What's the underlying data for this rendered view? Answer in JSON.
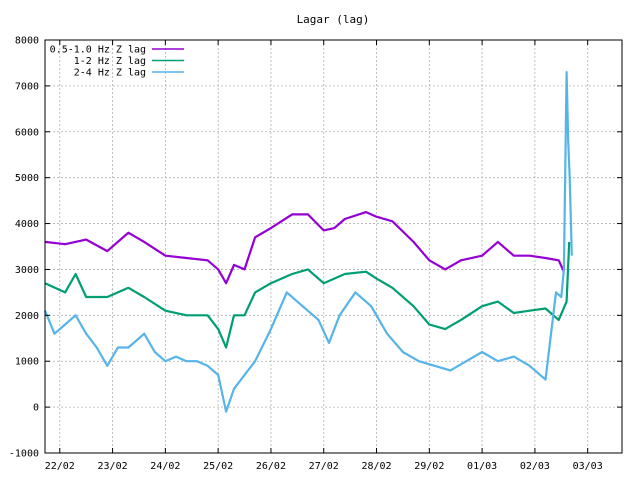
{
  "chart_data": {
    "type": "line",
    "title": "Lagar (lag)",
    "xlabel": "",
    "ylabel": "",
    "ylim": [
      -1000,
      8000
    ],
    "xlim": [
      -0.28,
      10.65
    ],
    "y_ticks": [
      -1000,
      0,
      1000,
      2000,
      3000,
      4000,
      5000,
      6000,
      7000,
      8000
    ],
    "x_ticks": [
      {
        "x": 0,
        "label": "22/02"
      },
      {
        "x": 1,
        "label": "23/02"
      },
      {
        "x": 2,
        "label": "24/02"
      },
      {
        "x": 3,
        "label": "25/02"
      },
      {
        "x": 4,
        "label": "26/02"
      },
      {
        "x": 5,
        "label": "27/02"
      },
      {
        "x": 6,
        "label": "28/02"
      },
      {
        "x": 7,
        "label": "29/02"
      },
      {
        "x": 8,
        "label": "01/03"
      },
      {
        "x": 9,
        "label": "02/03"
      },
      {
        "x": 10,
        "label": "03/03"
      }
    ],
    "grid": true,
    "legend_position": "top-left",
    "series": [
      {
        "name": "0.5-1.0 Hz Z lag",
        "color": "#9400d3",
        "x": [
          -0.28,
          0.1,
          0.5,
          0.9,
          1.3,
          1.6,
          2.0,
          2.4,
          2.8,
          3.0,
          3.15,
          3.3,
          3.5,
          3.7,
          4.0,
          4.4,
          4.7,
          5.0,
          5.2,
          5.4,
          5.8,
          6.0,
          6.3,
          6.7,
          7.0,
          7.3,
          7.6,
          8.0,
          8.3,
          8.6,
          8.9,
          9.2,
          9.45,
          9.55
        ],
        "y": [
          3600,
          3550,
          3650,
          3400,
          3800,
          3600,
          3300,
          3250,
          3200,
          3000,
          2700,
          3100,
          3000,
          3700,
          3900,
          4200,
          4200,
          3850,
          3900,
          4100,
          4250,
          4150,
          4050,
          3600,
          3200,
          3000,
          3200,
          3300,
          3600,
          3300,
          3300,
          3250,
          3200,
          2950
        ]
      },
      {
        "name": "1-2 Hz Z lag",
        "color": "#009e73",
        "x": [
          -0.28,
          0.1,
          0.3,
          0.5,
          0.9,
          1.3,
          1.6,
          2.0,
          2.4,
          2.8,
          3.0,
          3.15,
          3.3,
          3.5,
          3.7,
          4.0,
          4.4,
          4.7,
          5.0,
          5.2,
          5.4,
          5.8,
          6.0,
          6.3,
          6.7,
          7.0,
          7.3,
          7.6,
          8.0,
          8.3,
          8.6,
          8.9,
          9.2,
          9.45,
          9.6,
          9.65
        ],
        "y": [
          2700,
          2500,
          2900,
          2400,
          2400,
          2600,
          2400,
          2100,
          2000,
          2000,
          1700,
          1300,
          2000,
          2000,
          2500,
          2700,
          2900,
          3000,
          2700,
          2800,
          2900,
          2950,
          2800,
          2600,
          2200,
          1800,
          1700,
          1900,
          2200,
          2300,
          2050,
          2100,
          2150,
          1900,
          2300,
          3600
        ]
      },
      {
        "name": "2-4 Hz Z lag",
        "color": "#56b4e9",
        "x": [
          -0.28,
          -0.1,
          0.1,
          0.3,
          0.5,
          0.7,
          0.9,
          1.1,
          1.3,
          1.6,
          1.8,
          2.0,
          2.2,
          2.4,
          2.6,
          2.8,
          3.0,
          3.15,
          3.3,
          3.5,
          3.7,
          4.0,
          4.3,
          4.6,
          4.9,
          5.1,
          5.3,
          5.6,
          5.9,
          6.2,
          6.5,
          6.8,
          7.1,
          7.4,
          7.7,
          8.0,
          8.3,
          8.6,
          8.9,
          9.2,
          9.4,
          9.5,
          9.55,
          9.6,
          9.63,
          9.66,
          9.7
        ],
        "y": [
          2100,
          1600,
          1800,
          2000,
          1600,
          1300,
          900,
          1300,
          1300,
          1600,
          1200,
          1000,
          1100,
          1000,
          1000,
          900,
          700,
          -100,
          400,
          700,
          1000,
          1700,
          2500,
          2200,
          1900,
          1400,
          2000,
          2500,
          2200,
          1600,
          1200,
          1000,
          900,
          800,
          1000,
          1200,
          1000,
          1100,
          900,
          600,
          2500,
          2400,
          3000,
          7300,
          5800,
          5000,
          3300
        ]
      }
    ]
  }
}
